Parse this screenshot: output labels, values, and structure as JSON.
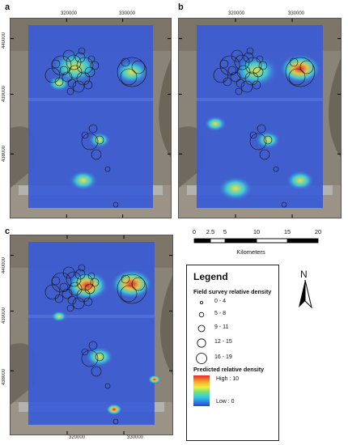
{
  "panels": [
    {
      "letter": "a"
    },
    {
      "letter": "b"
    },
    {
      "letter": "c"
    }
  ],
  "x_ticks": [
    "320000",
    "330000"
  ],
  "y_ticks": [
    "440000",
    "439000",
    "438000"
  ],
  "scale": {
    "ticks": [
      "0",
      "2.5",
      "5",
      "10",
      "15",
      "20"
    ],
    "unit": "Kilometers"
  },
  "north_label": "N",
  "legend": {
    "title": "Legend",
    "field_title": "Field survey relative density",
    "field_items": [
      "0 - 4",
      "5 - 8",
      "9 - 11",
      "12 - 15",
      "16 - 19"
    ],
    "pred_title": "Predicted relative density",
    "pred_high": "High : 10",
    "pred_low": "Low : 0"
  },
  "colors": {
    "background_land": "#8a8478",
    "low_density": "#3a5bd6",
    "high_density": "#e8452b"
  }
}
